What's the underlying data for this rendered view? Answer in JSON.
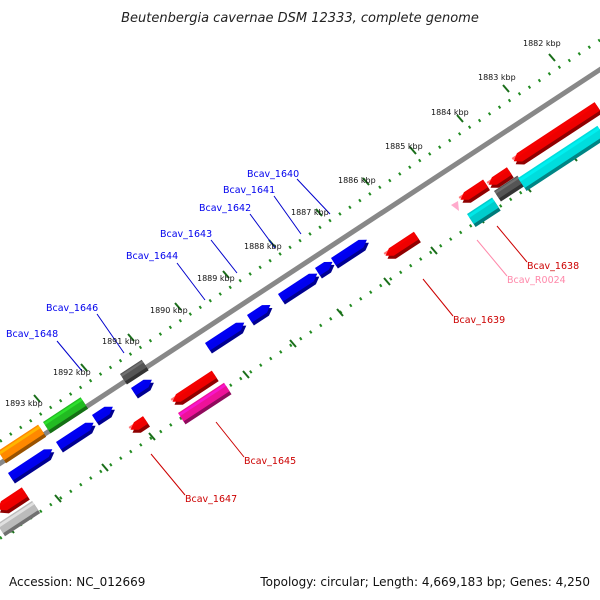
{
  "title": "Beutenbergia cavernae DSM 12333, complete genome",
  "footer": {
    "accession": "Accession: NC_012669",
    "summary": "Topology: circular; Length: 4,669,183 bp; Genes: 4,250"
  },
  "colors": {
    "backbone": "#888888",
    "tick_dots": "#228b22",
    "tick_mark": "#1a6e1a",
    "leader_blue": "#0000cc",
    "leader_red": "#cc0000",
    "leader_pink": "#ff88aa"
  },
  "ticks": [
    "1882 kbp",
    "1883 kbp",
    "1884 kbp",
    "1885 kbp",
    "1886 kbp",
    "1887 kbp",
    "1888 kbp",
    "1889 kbp",
    "1890 kbp",
    "1891 kbp",
    "1892 kbp",
    "1893 kbp"
  ],
  "genes_forward": [
    {
      "label": "Bcav_1640",
      "color": "#0000ee"
    },
    {
      "label": "Bcav_1641",
      "color": "#0000ee"
    },
    {
      "label": "Bcav_1642",
      "color": "#0000ee"
    },
    {
      "label": "Bcav_1643",
      "color": "#0000ee"
    },
    {
      "label": "Bcav_1644",
      "color": "#0000ee"
    },
    {
      "label": "Bcav_1646",
      "color": "#0000ee"
    },
    {
      "label": "Bcav_1648",
      "color": "#0000ee"
    }
  ],
  "genes_reverse": [
    {
      "label": "Bcav_1638",
      "color": "#cc0000"
    },
    {
      "label": "Bcav_R0024",
      "color": "#ff88aa"
    },
    {
      "label": "Bcav_1639",
      "color": "#cc0000"
    },
    {
      "label": "Bcav_1645",
      "color": "#cc0000"
    },
    {
      "label": "Bcav_1647",
      "color": "#cc0000"
    }
  ]
}
